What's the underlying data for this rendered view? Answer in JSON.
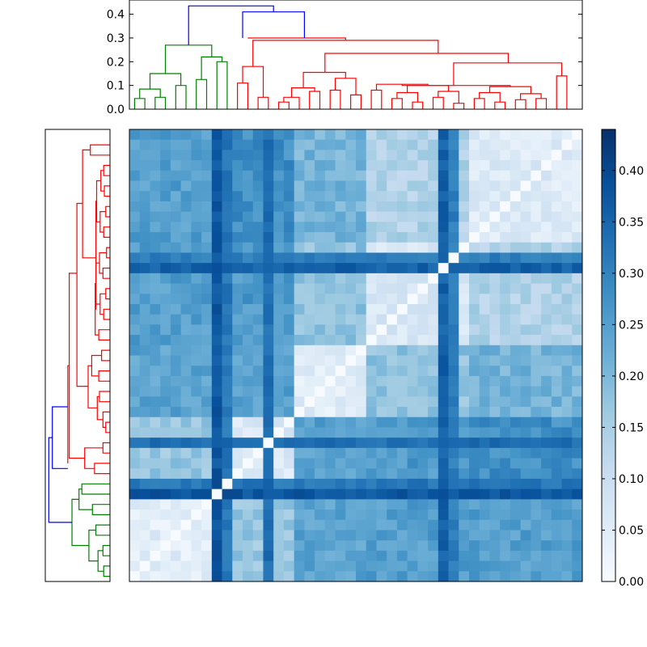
{
  "chart_data": [
    {
      "type": "dendrogram",
      "panel": "top",
      "orientation": "top",
      "ylim": [
        0,
        0.46
      ],
      "y_ticks": [
        0.0,
        0.1,
        0.2,
        0.3,
        0.4
      ],
      "y_tick_labels": [
        "0.0",
        "0.1",
        "0.2",
        "0.3",
        "0.4"
      ],
      "leaf_count": 44,
      "cluster_colors": {
        "root": "#0000ff",
        "group_a": "#008000",
        "group_b": "#ff0000"
      },
      "merges": [
        {
          "cluster": "group_a",
          "x": [
            0.5,
            0.5,
            1.5,
            1.5
          ],
          "y": [
            0,
            0.045,
            0.045,
            0
          ]
        },
        {
          "cluster": "group_a",
          "x": [
            2.5,
            2.5,
            3.5,
            3.5
          ],
          "y": [
            0,
            0.05,
            0.05,
            0
          ]
        },
        {
          "cluster": "group_a",
          "x": [
            1.0,
            1.0,
            3.0,
            3.0
          ],
          "y": [
            0.045,
            0.085,
            0.085,
            0.05
          ]
        },
        {
          "cluster": "group_a",
          "x": [
            4.5,
            4.5,
            5.5,
            5.5
          ],
          "y": [
            0,
            0.1,
            0.1,
            0
          ]
        },
        {
          "cluster": "group_a",
          "x": [
            2.0,
            2.0,
            5.0,
            5.0
          ],
          "y": [
            0.085,
            0.15,
            0.15,
            0.1
          ]
        },
        {
          "cluster": "group_a",
          "x": [
            6.5,
            6.5,
            7.5,
            7.5
          ],
          "y": [
            0,
            0.125,
            0.125,
            0
          ]
        },
        {
          "cluster": "group_a",
          "x": [
            8.5,
            8.5,
            9.5,
            9.5
          ],
          "y": [
            0,
            0.2,
            0.2,
            0
          ]
        },
        {
          "cluster": "group_a",
          "x": [
            7.0,
            7.0,
            9.0,
            9.0
          ],
          "y": [
            0.125,
            0.22,
            0.22,
            0.2
          ]
        },
        {
          "cluster": "group_a",
          "x": [
            3.5,
            3.5,
            8.0,
            8.0
          ],
          "y": [
            0.15,
            0.27,
            0.27,
            0.22
          ]
        },
        {
          "cluster": "group_b",
          "x": [
            10.5,
            10.5,
            11.5,
            11.5
          ],
          "y": [
            0,
            0.11,
            0.11,
            0
          ]
        },
        {
          "cluster": "group_b",
          "x": [
            12.5,
            12.5,
            13.5,
            13.5
          ],
          "y": [
            0,
            0.05,
            0.05,
            0
          ]
        },
        {
          "cluster": "group_b",
          "x": [
            11.0,
            11.0,
            13.0,
            13.0
          ],
          "y": [
            0.11,
            0.18,
            0.18,
            0.05
          ]
        },
        {
          "cluster": "group_b",
          "x": [
            14.5,
            14.5,
            15.5,
            15.5
          ],
          "y": [
            0,
            0.03,
            0.03,
            0
          ]
        },
        {
          "cluster": "group_b",
          "x": [
            15.0,
            15.0,
            16.5,
            16.5
          ],
          "y": [
            0.03,
            0.05,
            0.05,
            0
          ]
        },
        {
          "cluster": "group_b",
          "x": [
            17.5,
            17.5,
            18.5,
            18.5
          ],
          "y": [
            0,
            0.075,
            0.075,
            0
          ]
        },
        {
          "cluster": "group_b",
          "x": [
            15.75,
            15.75,
            18.0,
            18.0
          ],
          "y": [
            0.05,
            0.09,
            0.09,
            0.075
          ]
        },
        {
          "cluster": "group_b",
          "x": [
            19.5,
            19.5,
            20.5,
            20.5
          ],
          "y": [
            0,
            0.08,
            0.08,
            0
          ]
        },
        {
          "cluster": "group_b",
          "x": [
            21.5,
            21.5,
            22.5,
            22.5
          ],
          "y": [
            0,
            0.06,
            0.06,
            0
          ]
        },
        {
          "cluster": "group_b",
          "x": [
            20.0,
            20.0,
            22.0,
            22.0
          ],
          "y": [
            0.08,
            0.13,
            0.13,
            0.06
          ]
        },
        {
          "cluster": "group_b",
          "x": [
            16.9,
            16.9,
            21.0,
            21.0
          ],
          "y": [
            0.09,
            0.155,
            0.155,
            0.13
          ]
        },
        {
          "cluster": "group_b",
          "x": [
            23.5,
            23.5,
            24.5,
            24.5
          ],
          "y": [
            0,
            0.08,
            0.08,
            0
          ]
        },
        {
          "cluster": "group_b",
          "x": [
            25.5,
            25.5,
            26.5,
            26.5
          ],
          "y": [
            0,
            0.045,
            0.045,
            0
          ]
        },
        {
          "cluster": "group_b",
          "x": [
            27.5,
            27.5,
            28.5,
            28.5
          ],
          "y": [
            0,
            0.03,
            0.03,
            0
          ]
        },
        {
          "cluster": "group_b",
          "x": [
            26.0,
            26.0,
            28.0,
            28.0
          ],
          "y": [
            0.045,
            0.07,
            0.07,
            0.03
          ]
        },
        {
          "cluster": "group_b",
          "x": [
            29.5,
            29.5,
            30.5,
            30.5
          ],
          "y": [
            0,
            0.05,
            0.05,
            0
          ]
        },
        {
          "cluster": "group_b",
          "x": [
            31.5,
            31.5,
            32.5,
            32.5
          ],
          "y": [
            0,
            0.025,
            0.025,
            0
          ]
        },
        {
          "cluster": "group_b",
          "x": [
            30.0,
            30.0,
            32.0,
            32.0
          ],
          "y": [
            0.05,
            0.075,
            0.075,
            0.025
          ]
        },
        {
          "cluster": "group_b",
          "x": [
            27.0,
            27.0,
            31.0,
            31.0
          ],
          "y": [
            0.07,
            0.1,
            0.1,
            0.075
          ]
        },
        {
          "cluster": "group_b",
          "x": [
            24.0,
            24.0,
            29.0,
            29.0
          ],
          "y": [
            0.08,
            0.105,
            0.105,
            0.1
          ]
        },
        {
          "cluster": "group_b",
          "x": [
            33.5,
            33.5,
            34.5,
            34.5
          ],
          "y": [
            0,
            0.045,
            0.045,
            0
          ]
        },
        {
          "cluster": "group_b",
          "x": [
            35.5,
            35.5,
            36.5,
            36.5
          ],
          "y": [
            0,
            0.03,
            0.03,
            0
          ]
        },
        {
          "cluster": "group_b",
          "x": [
            34.0,
            34.0,
            36.0,
            36.0
          ],
          "y": [
            0.045,
            0.07,
            0.07,
            0.03
          ]
        },
        {
          "cluster": "group_b",
          "x": [
            37.5,
            37.5,
            38.5,
            38.5
          ],
          "y": [
            0,
            0.04,
            0.04,
            0
          ]
        },
        {
          "cluster": "group_b",
          "x": [
            39.5,
            39.5,
            40.5,
            40.5
          ],
          "y": [
            0,
            0.045,
            0.045,
            0
          ]
        },
        {
          "cluster": "group_b",
          "x": [
            38.0,
            38.0,
            40.0,
            40.0
          ],
          "y": [
            0.04,
            0.065,
            0.065,
            0.045
          ]
        },
        {
          "cluster": "group_b",
          "x": [
            35.0,
            35.0,
            39.0,
            39.0
          ],
          "y": [
            0.07,
            0.095,
            0.095,
            0.065
          ]
        },
        {
          "cluster": "group_b",
          "x": [
            26.5,
            26.5,
            37.0,
            37.0
          ],
          "y": [
            0.105,
            0.1,
            0.1,
            0.095
          ]
        },
        {
          "cluster": "group_b",
          "x": [
            41.5,
            41.5,
            42.5,
            42.5
          ],
          "y": [
            0,
            0.14,
            0.14,
            0
          ]
        },
        {
          "cluster": "group_b",
          "x": [
            31.5,
            31.5,
            42.0,
            42.0
          ],
          "y": [
            0.1,
            0.195,
            0.195,
            0.14
          ]
        },
        {
          "cluster": "group_b",
          "x": [
            19.0,
            19.0,
            36.8,
            36.8
          ],
          "y": [
            0.155,
            0.235,
            0.235,
            0.195
          ]
        },
        {
          "cluster": "group_b",
          "x": [
            12.0,
            12.0,
            30.0,
            30.0
          ],
          "y": [
            0.18,
            0.29,
            0.29,
            0.235
          ]
        },
        {
          "cluster": "group_b",
          "x": [
            11.5,
            11.5,
            21.0,
            21.0
          ],
          "y": [
            0.3,
            0.3,
            0.3,
            0.29
          ]
        },
        {
          "cluster": "root",
          "x": [
            11.0,
            11.0,
            17.0,
            17.0
          ],
          "y": [
            0.3,
            0.41,
            0.41,
            0.3
          ]
        },
        {
          "cluster": "root",
          "x": [
            5.75,
            5.75,
            14.0,
            14.0
          ],
          "y": [
            0.27,
            0.435,
            0.435,
            0.41
          ]
        }
      ]
    },
    {
      "type": "dendrogram",
      "panel": "left",
      "orientation": "left",
      "leaf_count": 44,
      "mirrors": "top"
    },
    {
      "type": "heatmap",
      "title": "",
      "rows": 44,
      "cols": 44,
      "colormap": "Blues",
      "vmin": 0.0,
      "vmax": 0.44,
      "diagonal_value": 0.0,
      "cluster_boundaries": [
        10,
        16,
        23,
        33
      ],
      "block_mean": [
        [
          0.05,
          0.17,
          0.24,
          0.25,
          0.25,
          0.22
        ],
        [
          0.17,
          0.06,
          0.25,
          0.26,
          0.28,
          0.24
        ],
        [
          0.24,
          0.25,
          0.05,
          0.18,
          0.21,
          0.17
        ],
        [
          0.25,
          0.26,
          0.18,
          0.07,
          0.14,
          0.13
        ],
        [
          0.25,
          0.28,
          0.21,
          0.14,
          0.06,
          0.12
        ],
        [
          0.22,
          0.24,
          0.17,
          0.13,
          0.12,
          0.05
        ]
      ],
      "highlight_rows": [
        {
          "row": 8,
          "value": 0.4
        },
        {
          "row": 9,
          "value": 0.34
        },
        {
          "row": 30,
          "value": 0.38
        },
        {
          "row": 31,
          "value": 0.33
        },
        {
          "row": 13,
          "value": 0.36
        }
      ]
    },
    {
      "type": "colorbar",
      "colormap": "Blues",
      "range": [
        0.0,
        0.44
      ],
      "ticks": [
        0.0,
        0.05,
        0.1,
        0.15,
        0.2,
        0.25,
        0.3,
        0.35,
        0.4
      ],
      "tick_labels": [
        "0.00",
        "0.05",
        "0.10",
        "0.15",
        "0.20",
        "0.25",
        "0.30",
        "0.35",
        "0.40"
      ]
    }
  ]
}
